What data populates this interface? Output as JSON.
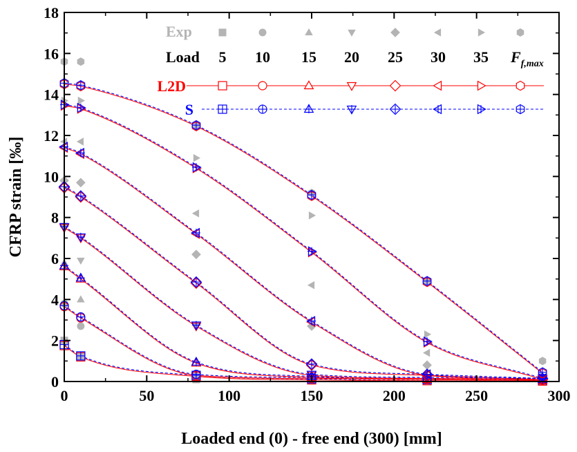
{
  "chart_data": {
    "type": "line",
    "xlabel": "Loaded end (0) - free end (300) [mm]",
    "ylabel": "CFRP strain [‰]",
    "xlim": [
      0,
      300
    ],
    "ylim": [
      0,
      18
    ],
    "x_ticks": [
      0,
      50,
      100,
      150,
      200,
      250,
      300
    ],
    "y_ticks": [
      0,
      2,
      4,
      6,
      8,
      10,
      12,
      14,
      16,
      18
    ],
    "grid": false,
    "legend_placement": "top-right",
    "legend": {
      "exp_label": "Exp",
      "load_label": "Load",
      "load_values": [
        "5",
        "10",
        "15",
        "20",
        "25",
        "30",
        "35"
      ],
      "fmax_main": "F",
      "fmax_sub": "f,max",
      "l2d_label": "L2D",
      "s_label": "S"
    },
    "colors": {
      "exp": "#b4b4b4",
      "l2d": "#ff0000",
      "s": "#0000ff",
      "text": "#000000"
    },
    "marker_shapes": [
      "square",
      "circle",
      "triangle-up",
      "triangle-down",
      "diamond",
      "triangle-left",
      "triangle-right",
      "hexagon"
    ],
    "x_positions": [
      0,
      10,
      80,
      150,
      220,
      290
    ],
    "series": [
      {
        "load": "5",
        "marker": "square",
        "exp": [
          [
            0,
            2.0
          ],
          [
            10,
            1.2
          ],
          [
            80,
            0.1
          ],
          [
            150,
            0.05
          ],
          [
            220,
            0.05
          ],
          [
            290,
            0.05
          ]
        ],
        "model": [
          [
            0,
            1.75
          ],
          [
            10,
            1.2
          ],
          [
            80,
            0.25
          ],
          [
            150,
            0.08
          ],
          [
            220,
            0.04
          ],
          [
            290,
            0.02
          ]
        ]
      },
      {
        "load": "10",
        "marker": "circle",
        "exp": [
          [
            0,
            3.8
          ],
          [
            10,
            2.7
          ],
          [
            80,
            0.2
          ],
          [
            150,
            0.1
          ],
          [
            220,
            0.05
          ],
          [
            290,
            0.05
          ]
        ],
        "model": [
          [
            0,
            3.65
          ],
          [
            10,
            3.1
          ],
          [
            80,
            0.3
          ],
          [
            150,
            0.15
          ],
          [
            220,
            0.1
          ],
          [
            290,
            0.05
          ]
        ]
      },
      {
        "load": "15",
        "marker": "triangle-up",
        "exp": [
          [
            0,
            5.8
          ],
          [
            10,
            4.0
          ],
          [
            80,
            0.4
          ],
          [
            150,
            0.1
          ],
          [
            220,
            0.1
          ],
          [
            290,
            0.05
          ]
        ],
        "model": [
          [
            0,
            5.6
          ],
          [
            10,
            5.0
          ],
          [
            80,
            0.9
          ],
          [
            150,
            0.2
          ],
          [
            220,
            0.1
          ],
          [
            290,
            0.05
          ]
        ]
      },
      {
        "load": "20",
        "marker": "triangle-down",
        "exp": [
          [
            0,
            7.6
          ],
          [
            10,
            5.9
          ],
          [
            80,
            2.7
          ],
          [
            150,
            0.2
          ],
          [
            220,
            0.1
          ],
          [
            290,
            0.05
          ]
        ],
        "model": [
          [
            0,
            7.5
          ],
          [
            10,
            7.0
          ],
          [
            80,
            2.7
          ],
          [
            150,
            0.3
          ],
          [
            220,
            0.15
          ],
          [
            290,
            0.1
          ]
        ]
      },
      {
        "load": "25",
        "marker": "diamond",
        "exp": [
          [
            0,
            9.8
          ],
          [
            10,
            9.7
          ],
          [
            80,
            6.2
          ],
          [
            150,
            2.7
          ],
          [
            220,
            0.8
          ],
          [
            290,
            0.1
          ]
        ],
        "model": [
          [
            0,
            9.45
          ],
          [
            10,
            9.0
          ],
          [
            80,
            4.8
          ],
          [
            150,
            0.8
          ],
          [
            220,
            0.3
          ],
          [
            290,
            0.1
          ]
        ]
      },
      {
        "load": "30",
        "marker": "triangle-left",
        "exp": [
          [
            0,
            11.7
          ],
          [
            10,
            11.7
          ],
          [
            80,
            8.2
          ],
          [
            150,
            4.7
          ],
          [
            220,
            1.4
          ],
          [
            290,
            0.2
          ]
        ],
        "model": [
          [
            0,
            11.4
          ],
          [
            10,
            11.1
          ],
          [
            80,
            7.2
          ],
          [
            150,
            2.9
          ],
          [
            220,
            0.3
          ],
          [
            290,
            0.1
          ]
        ]
      },
      {
        "load": "35",
        "marker": "triangle-right",
        "exp": [
          [
            0,
            13.7
          ],
          [
            10,
            13.7
          ],
          [
            80,
            10.9
          ],
          [
            150,
            8.1
          ],
          [
            220,
            2.3
          ],
          [
            290,
            0.3
          ]
        ],
        "model": [
          [
            0,
            13.45
          ],
          [
            10,
            13.3
          ],
          [
            80,
            10.4
          ],
          [
            150,
            6.3
          ],
          [
            220,
            1.9
          ],
          [
            290,
            0.1
          ]
        ]
      },
      {
        "load": "Ff,max",
        "marker": "hexagon",
        "exp": [
          [
            0,
            15.6
          ],
          [
            10,
            15.6
          ],
          [
            80,
            12.5
          ],
          [
            150,
            9.2
          ],
          [
            220,
            4.9
          ],
          [
            290,
            1.0
          ]
        ],
        "model": [
          [
            0,
            14.5
          ],
          [
            10,
            14.4
          ],
          [
            80,
            12.45
          ],
          [
            150,
            9.05
          ],
          [
            220,
            4.85
          ],
          [
            290,
            0.4
          ]
        ]
      }
    ]
  }
}
